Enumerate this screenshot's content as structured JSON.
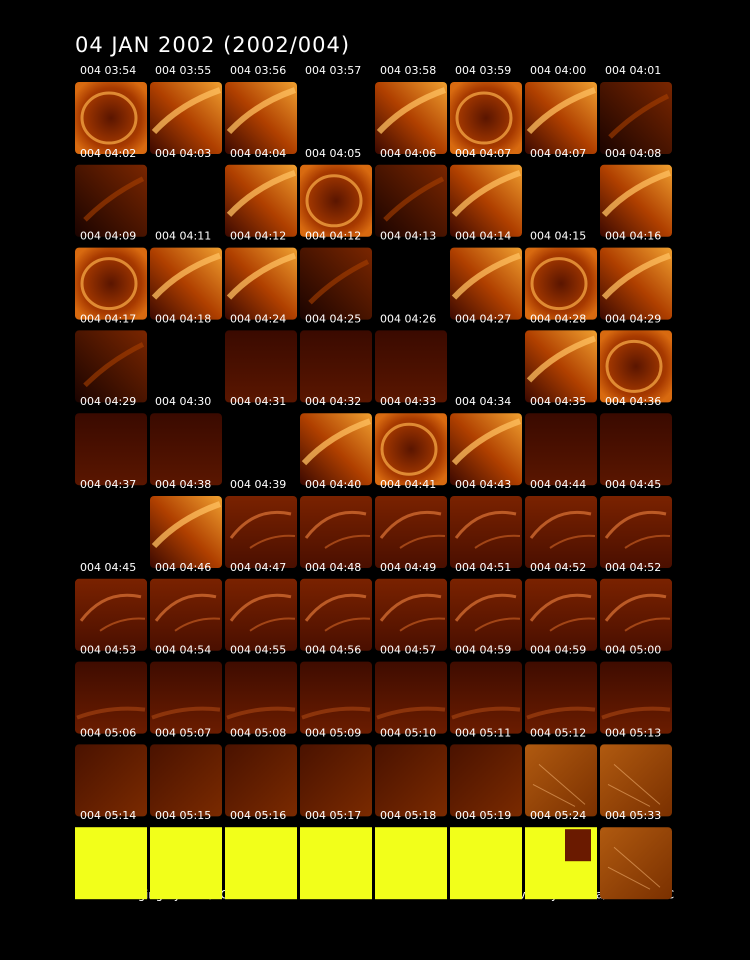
{
  "header": {
    "title": "04 JAN 2002  (2002/004)"
  },
  "tiles": [
    [
      "004 03:54",
      "004 03:55",
      "004 03:56",
      "004 03:57",
      "004 03:58",
      "004 03:59",
      "004 04:00",
      "004 04:01"
    ],
    [
      "004 04:02",
      "004 04:03",
      "004 04:04",
      "004 04:05",
      "004 04:06",
      "004 04:07",
      "004 04:07",
      "004 04:08"
    ],
    [
      "004 04:09",
      "004 04:11",
      "004 04:12",
      "004 04:12",
      "004 04:13",
      "004 04:14",
      "004 04:15",
      "004 04:16"
    ],
    [
      "004 04:17",
      "004 04:18",
      "004 04:24",
      "004 04:25",
      "004 04:26",
      "004 04:27",
      "004 04:28",
      "004 04:29"
    ],
    [
      "004 04:29",
      "004 04:30",
      "004 04:31",
      "004 04:32",
      "004 04:33",
      "004 04:34",
      "004 04:35",
      "004 04:36"
    ],
    [
      "004 04:37",
      "004 04:38",
      "004 04:39",
      "004 04:40",
      "004 04:41",
      "004 04:43",
      "004 04:44",
      "004 04:45"
    ],
    [
      "004 04:45",
      "004 04:46",
      "004 04:47",
      "004 04:48",
      "004 04:49",
      "004 04:51",
      "004 04:52",
      "004 04:52"
    ],
    [
      "004 04:53",
      "004 04:54",
      "004 04:55",
      "004 04:56",
      "004 04:57",
      "004 04:59",
      "004 04:59",
      "004 05:00"
    ],
    [
      "004 05:06",
      "004 05:07",
      "004 05:08",
      "004 05:09",
      "004 05:10",
      "004 05:11",
      "004 05:12",
      "004 05:13"
    ],
    [
      "004 05:14",
      "004 05:15",
      "004 05:16",
      "004 05:17",
      "004 05:18",
      "004 05:19",
      "004 05:24",
      "004 05:33"
    ]
  ],
  "footer": {
    "left": "Visible Imaging System/POLAR",
    "right": "The University of Iowa/NASA-GSFC"
  }
}
